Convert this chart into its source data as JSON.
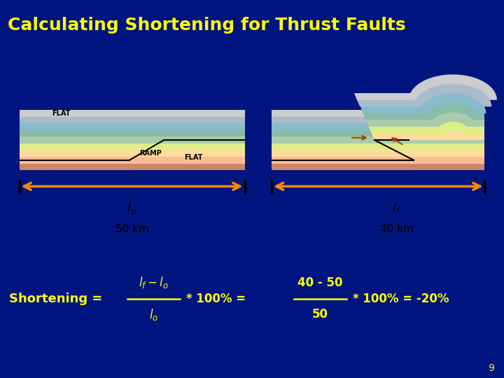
{
  "title": "Calculating Shortening for Thrust Faults",
  "title_color": "#FFFF00",
  "title_bg_top": "#1133AA",
  "title_bg_bot": "#002288",
  "title_fontsize": 18,
  "slide_bg_color": "#001580",
  "content_bg_color": "#FFFFFF",
  "cyan_line_color": "#00EEFF",
  "formula_color": "#FFFF00",
  "arrow_color": "#FF8800",
  "page_number": "9",
  "layer_colors": [
    "#CC8866",
    "#FFBB99",
    "#FFDD99",
    "#DDEE88",
    "#AACCAA",
    "#88BBAA",
    "#88BBCC",
    "#AABBCC",
    "#CCCCCC"
  ],
  "fold_layer_colors": [
    "#FFDD99",
    "#DDEE88",
    "#AACCAA",
    "#88BBAA",
    "#88BBCC",
    "#AABBCC",
    "#CCCCCC"
  ],
  "lo_value": "50 km",
  "lf_value": "40 km"
}
